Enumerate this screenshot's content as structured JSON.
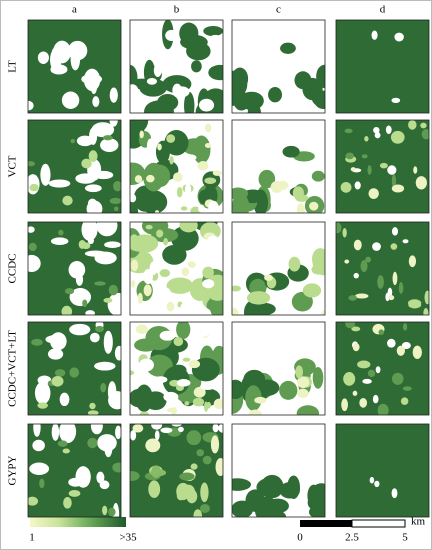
{
  "columns": [
    "a",
    "b",
    "c",
    "d"
  ],
  "rows": [
    "LT",
    "VCT",
    "CCDC",
    "CCDC+VCT+LT",
    "GYPY"
  ],
  "legend": {
    "min_label": "1",
    "max_label": ">35"
  },
  "scale_bar": {
    "labels": [
      "0",
      "2.5",
      "5"
    ],
    "unit": "km"
  }
}
